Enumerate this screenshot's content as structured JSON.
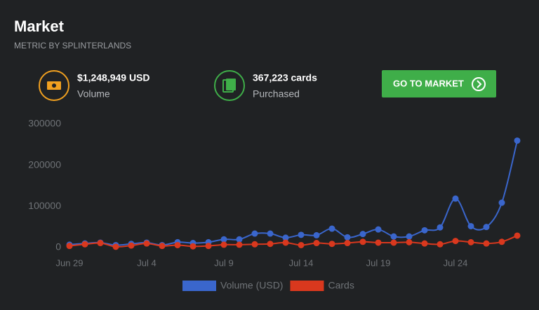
{
  "header": {
    "title": "Market",
    "subtitle": "METRIC BY SPLINTERLANDS"
  },
  "stats": [
    {
      "value": "$1,248,949 USD",
      "label": "Volume"
    },
    {
      "value": "367,223 cards",
      "label": "Purchased"
    }
  ],
  "button": {
    "label": "GO TO MARKET"
  },
  "chart_data": {
    "type": "line",
    "categories": [
      "Jun 29",
      null,
      null,
      null,
      null,
      "Jul 4",
      null,
      null,
      null,
      null,
      "Jul 9",
      null,
      null,
      null,
      null,
      "Jul 14",
      null,
      null,
      null,
      null,
      "Jul 19",
      null,
      null,
      null,
      null,
      "Jul 24",
      null,
      null,
      null,
      null
    ],
    "series": [
      {
        "name": "Volume (USD)",
        "color": "#3a66cc",
        "values": [
          7000,
          10000,
          12000,
          6000,
          9000,
          12000,
          6000,
          13000,
          11000,
          13000,
          20000,
          20000,
          34000,
          34000,
          24000,
          31000,
          30000,
          46000,
          25000,
          33000,
          44000,
          27000,
          27000,
          42000,
          49000,
          119000,
          52000,
          50000,
          109000,
          260000
        ]
      },
      {
        "name": "Cards",
        "color": "#d9381e",
        "values": [
          4000,
          8000,
          11000,
          2000,
          5000,
          10000,
          4000,
          6000,
          3000,
          4000,
          7000,
          7000,
          8000,
          9000,
          12000,
          6000,
          11000,
          9000,
          11000,
          14000,
          12000,
          12000,
          13000,
          10000,
          8000,
          16000,
          13000,
          10000,
          14000,
          29000
        ]
      }
    ],
    "ylim": [
      0,
      300000
    ],
    "yticks": [
      0,
      100000,
      200000,
      300000
    ],
    "grid": false
  }
}
